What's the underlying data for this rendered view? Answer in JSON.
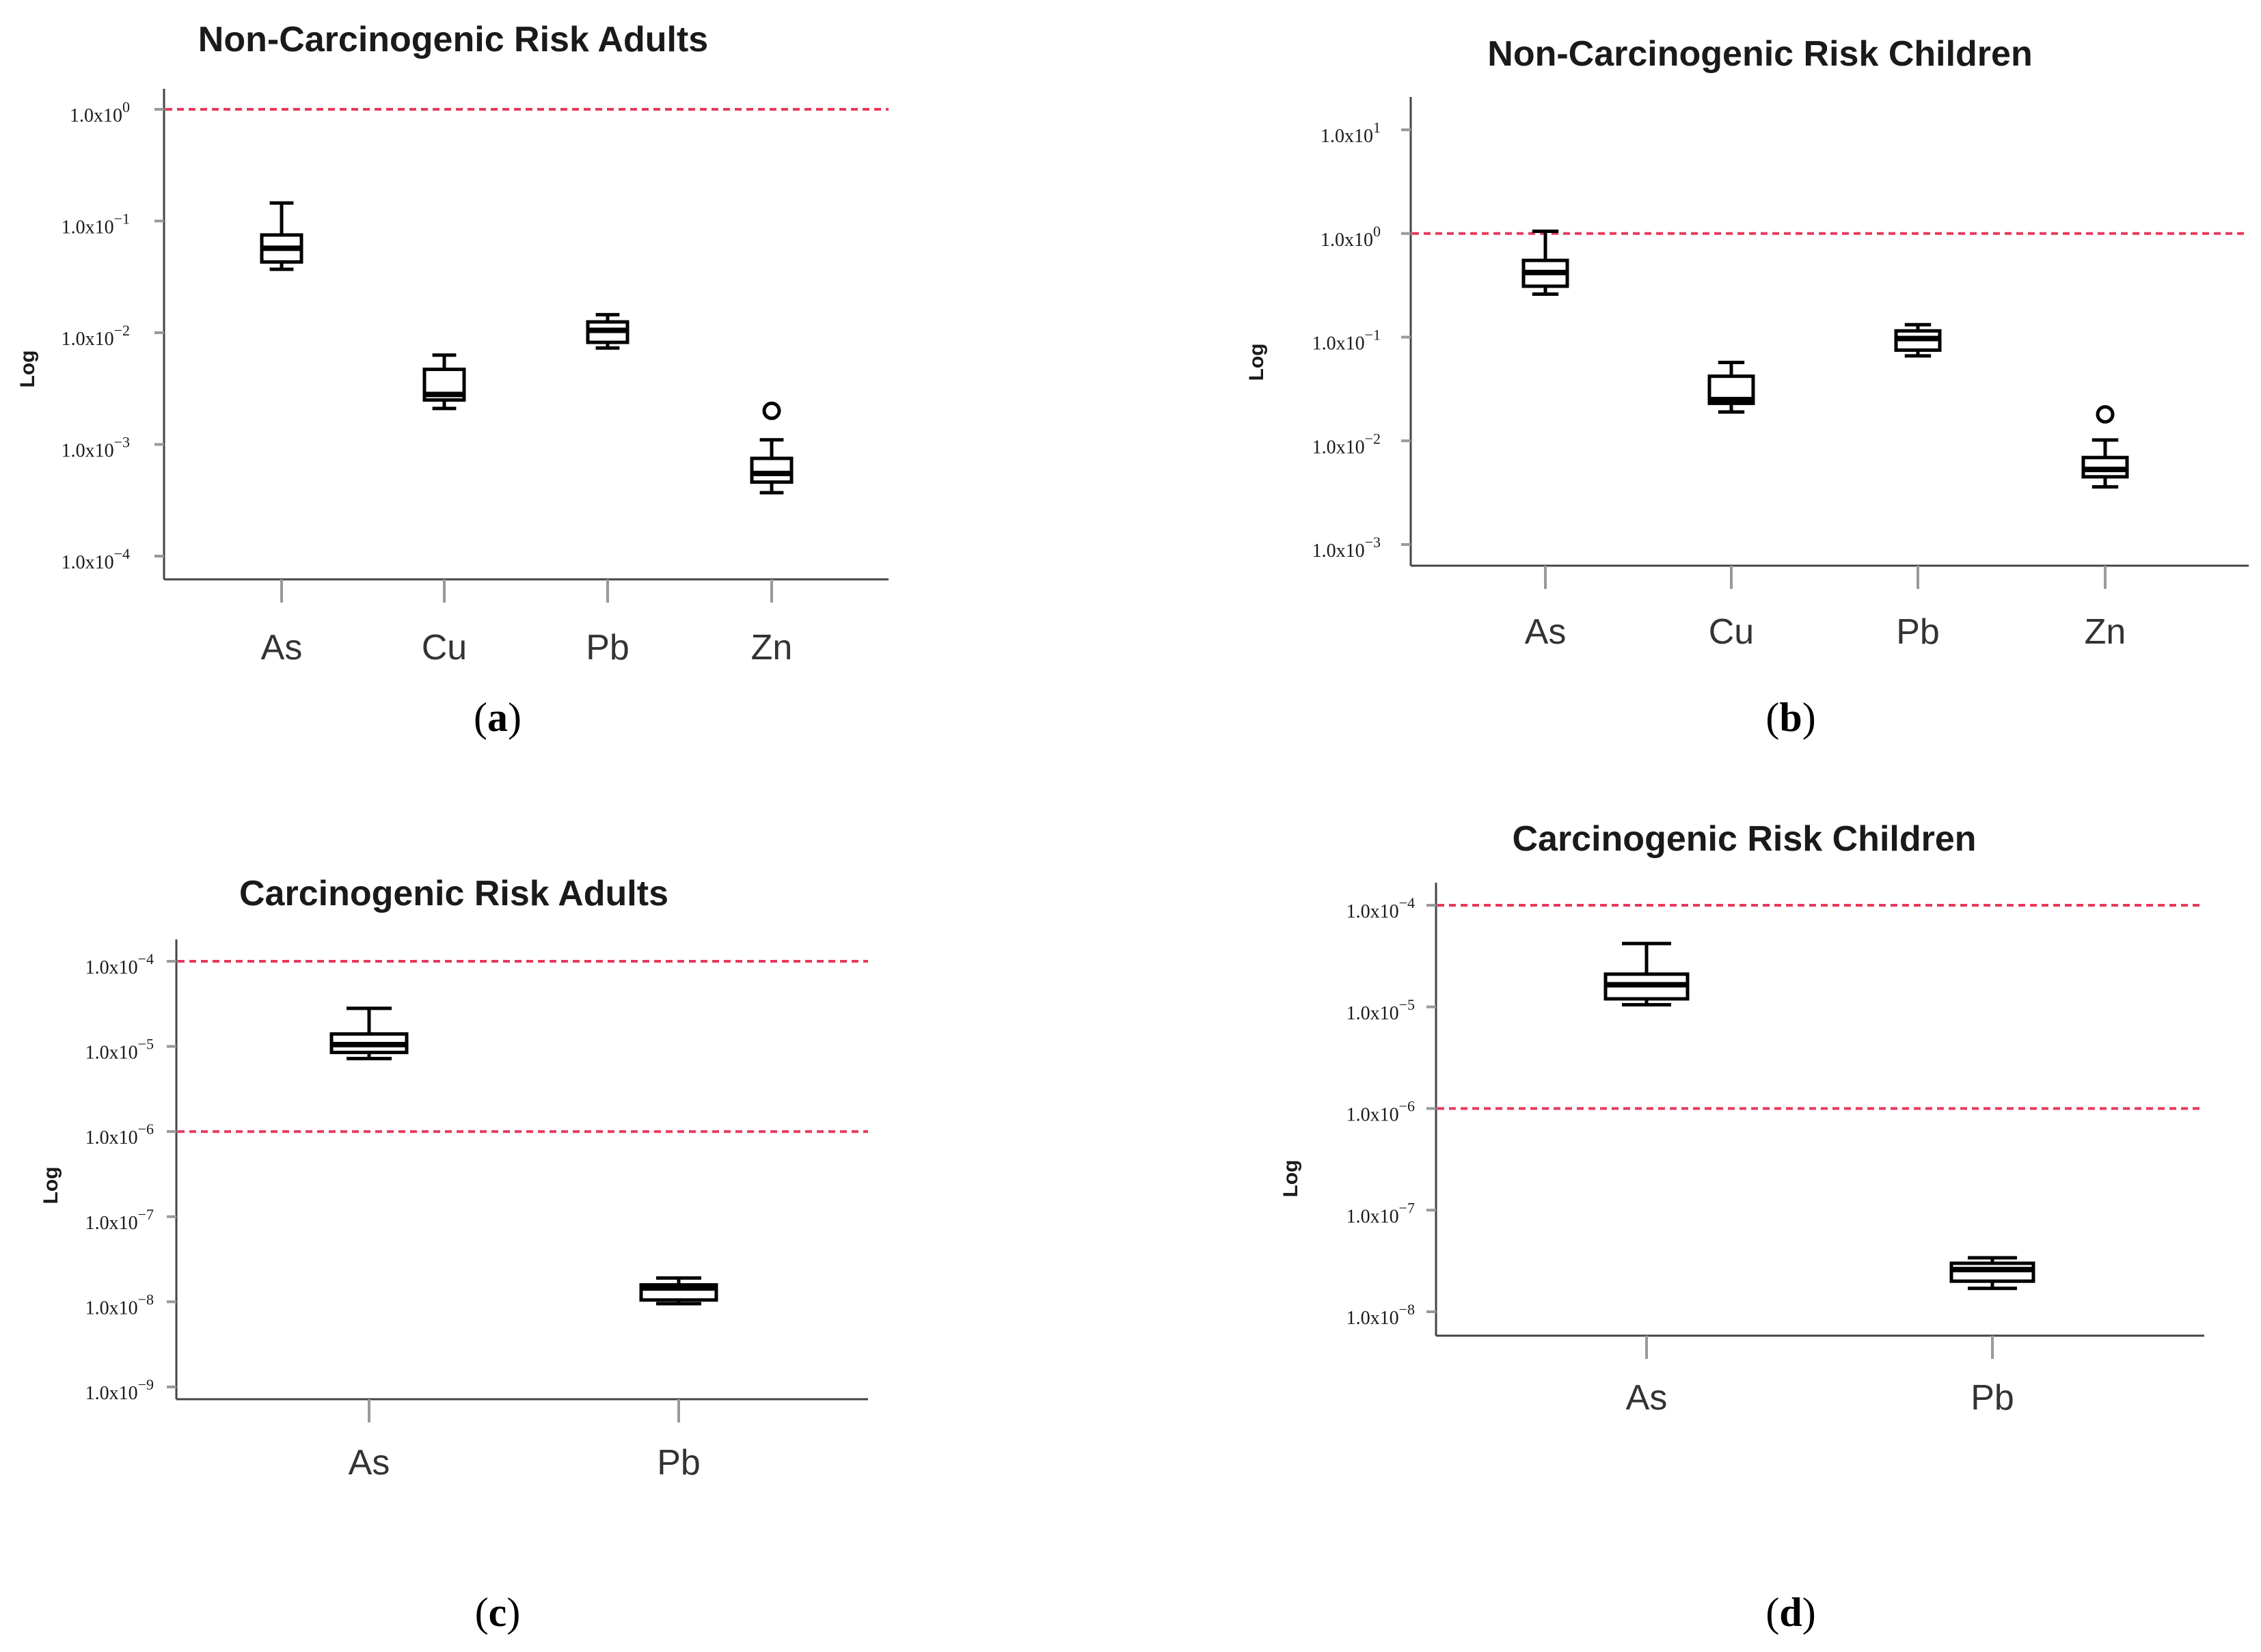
{
  "colors": {
    "reference_line": "#e8395c",
    "box_stroke": "#000000"
  },
  "chart_data": [
    {
      "panel_label": "a",
      "type": "box",
      "title": "Non-Carcinogenic Risk Adults",
      "xlabel": "",
      "ylabel": "Log",
      "yscale": "log",
      "ylim_exp": [
        -4,
        0
      ],
      "yticks": [
        {
          "exp": 0,
          "base": "1.0x10",
          "sup": "0"
        },
        {
          "exp": -1,
          "base": "1.0x10",
          "sup": "−1"
        },
        {
          "exp": -2,
          "base": "1.0x10",
          "sup": "−2"
        },
        {
          "exp": -3,
          "base": "1.0x10",
          "sup": "−3"
        },
        {
          "exp": -4,
          "base": "1.0x10",
          "sup": "−4"
        }
      ],
      "reference_lines": [
        1.0
      ],
      "categories": [
        "As",
        "Cu",
        "Pb",
        "Zn"
      ],
      "boxes": [
        {
          "min": 0.037,
          "q1": 0.043,
          "median": 0.057,
          "q3": 0.075,
          "max": 0.145,
          "outliers": []
        },
        {
          "min": 0.0021,
          "q1": 0.0025,
          "median": 0.0028,
          "q3": 0.0047,
          "max": 0.0063,
          "outliers": []
        },
        {
          "min": 0.0073,
          "q1": 0.0082,
          "median": 0.0105,
          "q3": 0.0125,
          "max": 0.0145,
          "outliers": []
        },
        {
          "min": 0.00037,
          "q1": 0.00046,
          "median": 0.00055,
          "q3": 0.00075,
          "max": 0.0011,
          "outliers": [
            0.002
          ]
        }
      ]
    },
    {
      "panel_label": "b",
      "type": "box",
      "title": "Non-Carcinogenic Risk Children",
      "xlabel": "",
      "ylabel": "Log",
      "yscale": "log",
      "ylim_exp": [
        -3,
        1
      ],
      "yticks": [
        {
          "exp": 1,
          "base": "1.0x10",
          "sup": "1"
        },
        {
          "exp": 0,
          "base": "1.0x10",
          "sup": "0"
        },
        {
          "exp": -1,
          "base": "1.0x10",
          "sup": "−1"
        },
        {
          "exp": -2,
          "base": "1.0x10",
          "sup": "−2"
        },
        {
          "exp": -3,
          "base": "1.0x10",
          "sup": "−3"
        }
      ],
      "reference_lines": [
        1.0
      ],
      "categories": [
        "As",
        "Cu",
        "Pb",
        "Zn"
      ],
      "boxes": [
        {
          "min": 0.26,
          "q1": 0.31,
          "median": 0.42,
          "q3": 0.55,
          "max": 1.05,
          "outliers": []
        },
        {
          "min": 0.019,
          "q1": 0.023,
          "median": 0.025,
          "q3": 0.042,
          "max": 0.057,
          "outliers": []
        },
        {
          "min": 0.066,
          "q1": 0.075,
          "median": 0.097,
          "q3": 0.115,
          "max": 0.132,
          "outliers": []
        },
        {
          "min": 0.0036,
          "q1": 0.0045,
          "median": 0.0053,
          "q3": 0.0069,
          "max": 0.0102,
          "outliers": [
            0.018
          ]
        }
      ]
    },
    {
      "panel_label": "c",
      "type": "box",
      "title": "Carcinogenic Risk Adults",
      "xlabel": "",
      "ylabel": "Log",
      "yscale": "log",
      "ylim_exp": [
        -9,
        -4
      ],
      "yticks": [
        {
          "exp": -4,
          "base": "1.0x10",
          "sup": "−4"
        },
        {
          "exp": -5,
          "base": "1.0x10",
          "sup": "−5"
        },
        {
          "exp": -6,
          "base": "1.0x10",
          "sup": "−6"
        },
        {
          "exp": -7,
          "base": "1.0x10",
          "sup": "−7"
        },
        {
          "exp": -8,
          "base": "1.0x10",
          "sup": "−8"
        },
        {
          "exp": -9,
          "base": "1.0x10",
          "sup": "−9"
        }
      ],
      "reference_lines": [
        0.0001,
        1e-06
      ],
      "categories": [
        "As",
        "Pb"
      ],
      "boxes": [
        {
          "min": 7.2e-06,
          "q1": 8.5e-06,
          "median": 1.05e-05,
          "q3": 1.4e-05,
          "max": 2.8e-05,
          "outliers": []
        },
        {
          "min": 9.5e-09,
          "q1": 1.05e-08,
          "median": 1.45e-08,
          "q3": 1.58e-08,
          "max": 1.9e-08,
          "outliers": []
        }
      ]
    },
    {
      "panel_label": "d",
      "type": "box",
      "title": "Carcinogenic Risk Children",
      "xlabel": "",
      "ylabel": "Log",
      "yscale": "log",
      "ylim_exp": [
        -8,
        -4
      ],
      "yticks": [
        {
          "exp": -4,
          "base": "1.0x10",
          "sup": "−4"
        },
        {
          "exp": -5,
          "base": "1.0x10",
          "sup": "−5"
        },
        {
          "exp": -6,
          "base": "1.0x10",
          "sup": "−6"
        },
        {
          "exp": -7,
          "base": "1.0x10",
          "sup": "−7"
        },
        {
          "exp": -8,
          "base": "1.0x10",
          "sup": "−8"
        }
      ],
      "reference_lines": [
        0.0001,
        1e-06
      ],
      "categories": [
        "As",
        "Pb"
      ],
      "boxes": [
        {
          "min": 1.05e-05,
          "q1": 1.2e-05,
          "median": 1.65e-05,
          "q3": 2.1e-05,
          "max": 4.2e-05,
          "outliers": []
        },
        {
          "min": 1.7e-08,
          "q1": 2e-08,
          "median": 2.6e-08,
          "q3": 3e-08,
          "max": 3.4e-08,
          "outliers": []
        }
      ]
    }
  ]
}
